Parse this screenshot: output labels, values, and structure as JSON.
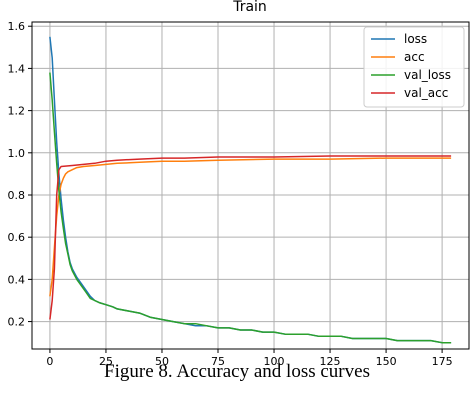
{
  "caption": "Figure 8. Accuracy and loss curves",
  "chart_data": {
    "type": "line",
    "title": "Train",
    "xlabel": "",
    "ylabel": "",
    "xlim": [
      -8,
      187
    ],
    "ylim": [
      0.07,
      1.62
    ],
    "xticks": [
      0,
      25,
      50,
      75,
      100,
      125,
      150,
      175
    ],
    "yticks": [
      0.2,
      0.4,
      0.6,
      0.8,
      1.0,
      1.2,
      1.4,
      1.6
    ],
    "grid": true,
    "legend_position": "top-right",
    "series": [
      {
        "name": "loss",
        "color": "#1f77b4",
        "points": [
          [
            0,
            1.55
          ],
          [
            1,
            1.45
          ],
          [
            2,
            1.25
          ],
          [
            3,
            1.05
          ],
          [
            4,
            0.9
          ],
          [
            5,
            0.78
          ],
          [
            6,
            0.68
          ],
          [
            7,
            0.6
          ],
          [
            8,
            0.53
          ],
          [
            9,
            0.48
          ],
          [
            10,
            0.45
          ],
          [
            12,
            0.41
          ],
          [
            14,
            0.38
          ],
          [
            16,
            0.35
          ],
          [
            18,
            0.32
          ],
          [
            20,
            0.3
          ],
          [
            22,
            0.29
          ],
          [
            25,
            0.28
          ],
          [
            28,
            0.27
          ],
          [
            30,
            0.26
          ],
          [
            35,
            0.25
          ],
          [
            40,
            0.24
          ],
          [
            45,
            0.22
          ],
          [
            50,
            0.21
          ],
          [
            55,
            0.2
          ],
          [
            60,
            0.19
          ],
          [
            65,
            0.18
          ],
          [
            70,
            0.18
          ],
          [
            75,
            0.17
          ],
          [
            80,
            0.17
          ],
          [
            85,
            0.16
          ],
          [
            90,
            0.16
          ],
          [
            95,
            0.15
          ],
          [
            100,
            0.15
          ],
          [
            105,
            0.14
          ],
          [
            110,
            0.14
          ],
          [
            115,
            0.14
          ],
          [
            120,
            0.13
          ],
          [
            125,
            0.13
          ],
          [
            130,
            0.13
          ],
          [
            135,
            0.12
          ],
          [
            140,
            0.12
          ],
          [
            145,
            0.12
          ],
          [
            150,
            0.12
          ],
          [
            155,
            0.11
          ],
          [
            160,
            0.11
          ],
          [
            165,
            0.11
          ],
          [
            170,
            0.11
          ],
          [
            175,
            0.1
          ],
          [
            179,
            0.1
          ]
        ]
      },
      {
        "name": "acc",
        "color": "#ff7f0e",
        "points": [
          [
            0,
            0.32
          ],
          [
            1,
            0.4
          ],
          [
            2,
            0.55
          ],
          [
            3,
            0.7
          ],
          [
            4,
            0.8
          ],
          [
            5,
            0.85
          ],
          [
            6,
            0.88
          ],
          [
            7,
            0.9
          ],
          [
            8,
            0.91
          ],
          [
            10,
            0.92
          ],
          [
            12,
            0.93
          ],
          [
            15,
            0.935
          ],
          [
            20,
            0.94
          ],
          [
            25,
            0.945
          ],
          [
            30,
            0.95
          ],
          [
            40,
            0.955
          ],
          [
            50,
            0.96
          ],
          [
            60,
            0.96
          ],
          [
            75,
            0.965
          ],
          [
            100,
            0.97
          ],
          [
            125,
            0.97
          ],
          [
            150,
            0.975
          ],
          [
            179,
            0.975
          ]
        ]
      },
      {
        "name": "val_loss",
        "color": "#2ca02c",
        "points": [
          [
            0,
            1.38
          ],
          [
            1,
            1.25
          ],
          [
            2,
            1.1
          ],
          [
            3,
            0.95
          ],
          [
            4,
            0.82
          ],
          [
            5,
            0.72
          ],
          [
            6,
            0.64
          ],
          [
            7,
            0.57
          ],
          [
            8,
            0.52
          ],
          [
            9,
            0.47
          ],
          [
            10,
            0.44
          ],
          [
            12,
            0.4
          ],
          [
            14,
            0.37
          ],
          [
            16,
            0.34
          ],
          [
            18,
            0.31
          ],
          [
            20,
            0.3
          ],
          [
            22,
            0.29
          ],
          [
            25,
            0.28
          ],
          [
            28,
            0.27
          ],
          [
            30,
            0.26
          ],
          [
            35,
            0.25
          ],
          [
            40,
            0.24
          ],
          [
            45,
            0.22
          ],
          [
            50,
            0.21
          ],
          [
            55,
            0.2
          ],
          [
            60,
            0.19
          ],
          [
            65,
            0.19
          ],
          [
            70,
            0.18
          ],
          [
            75,
            0.17
          ],
          [
            80,
            0.17
          ],
          [
            85,
            0.16
          ],
          [
            90,
            0.16
          ],
          [
            95,
            0.15
          ],
          [
            100,
            0.15
          ],
          [
            105,
            0.14
          ],
          [
            110,
            0.14
          ],
          [
            115,
            0.14
          ],
          [
            120,
            0.13
          ],
          [
            125,
            0.13
          ],
          [
            130,
            0.13
          ],
          [
            135,
            0.12
          ],
          [
            140,
            0.12
          ],
          [
            145,
            0.12
          ],
          [
            150,
            0.12
          ],
          [
            155,
            0.11
          ],
          [
            160,
            0.11
          ],
          [
            165,
            0.11
          ],
          [
            170,
            0.11
          ],
          [
            175,
            0.1
          ],
          [
            179,
            0.1
          ]
        ]
      },
      {
        "name": "val_acc",
        "color": "#d62728",
        "points": [
          [
            0,
            0.21
          ],
          [
            1,
            0.3
          ],
          [
            2,
            0.45
          ],
          [
            3,
            0.8
          ],
          [
            4,
            0.92
          ],
          [
            5,
            0.935
          ],
          [
            10,
            0.94
          ],
          [
            15,
            0.945
          ],
          [
            20,
            0.95
          ],
          [
            25,
            0.96
          ],
          [
            30,
            0.965
          ],
          [
            40,
            0.97
          ],
          [
            50,
            0.975
          ],
          [
            60,
            0.975
          ],
          [
            75,
            0.98
          ],
          [
            100,
            0.98
          ],
          [
            125,
            0.985
          ],
          [
            150,
            0.985
          ],
          [
            179,
            0.985
          ]
        ]
      }
    ]
  }
}
